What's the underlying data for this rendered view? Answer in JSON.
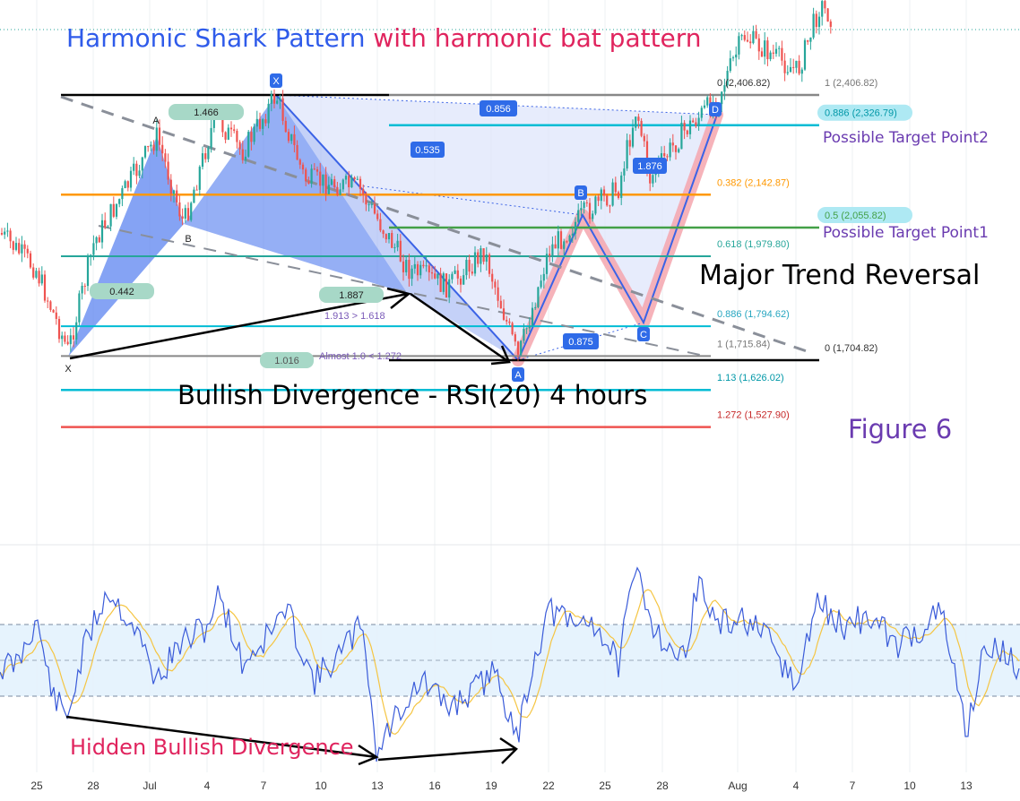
{
  "title": {
    "part1": "Harmonic Shark Pattern",
    "part2": "with harmonic bat pattern"
  },
  "annotations": {
    "major_trend": "Major Trend Reversal",
    "bullish_div": "Bullish Divergence - RSI(20) 4 hours",
    "figure": "Figure 6",
    "hidden_div": "Hidden Bullish Divergence",
    "target2": "Possible Target Point2",
    "target1": "Possible Target Point1"
  },
  "colors": {
    "blue": "#2f5bea",
    "pink": "#e0245e",
    "purple": "#6a3bb0",
    "teal": "#26a69a",
    "red": "#ef5350",
    "cyan": "#00bcd4",
    "orange": "#ff9800",
    "green": "#43a047"
  },
  "chart_data": [
    {
      "type": "candlestick",
      "x_ticks": [
        "25",
        "28",
        "Jul",
        "4",
        "7",
        "10",
        "13",
        "16",
        "19",
        "22",
        "25",
        "28",
        "Aug",
        "4",
        "7",
        "10",
        "13"
      ],
      "fib_levels": [
        {
          "label": "0 (2,406.82)",
          "value": 2406.82
        },
        {
          "label": "1 (2,406.82)",
          "value": 2406.82
        },
        {
          "label": "0.886 (2,326.79)",
          "value": 2326.79
        },
        {
          "label": "0.382 (2,142.87)",
          "value": 2142.87
        },
        {
          "label": "0.5 (2,055.82)",
          "value": 2055.82
        },
        {
          "label": "0.618 (1,979.80)",
          "value": 1979.8
        },
        {
          "label": "0.886 (1,794.62)",
          "value": 1794.62
        },
        {
          "label": "1 (1,715.84)",
          "value": 1715.84
        },
        {
          "label": "0 (1,704.82)",
          "value": 1704.82
        },
        {
          "label": "1.13 (1,626.02)",
          "value": 1626.02
        },
        {
          "label": "1.272 (1,527.90)",
          "value": 1527.9
        }
      ],
      "pattern_labels": {
        "X": "X",
        "A": "A",
        "B": "B",
        "C": "C",
        "D": "D"
      },
      "ratios": [
        "1.466",
        "0.442",
        "1.887",
        "1.913 > 1.618",
        "1.016",
        "Almost 1.0 < 1.272",
        "0.856",
        "0.535",
        "1.876",
        "0.875"
      ]
    },
    {
      "type": "line",
      "name": "RSI(20) 4 hours"
    }
  ]
}
